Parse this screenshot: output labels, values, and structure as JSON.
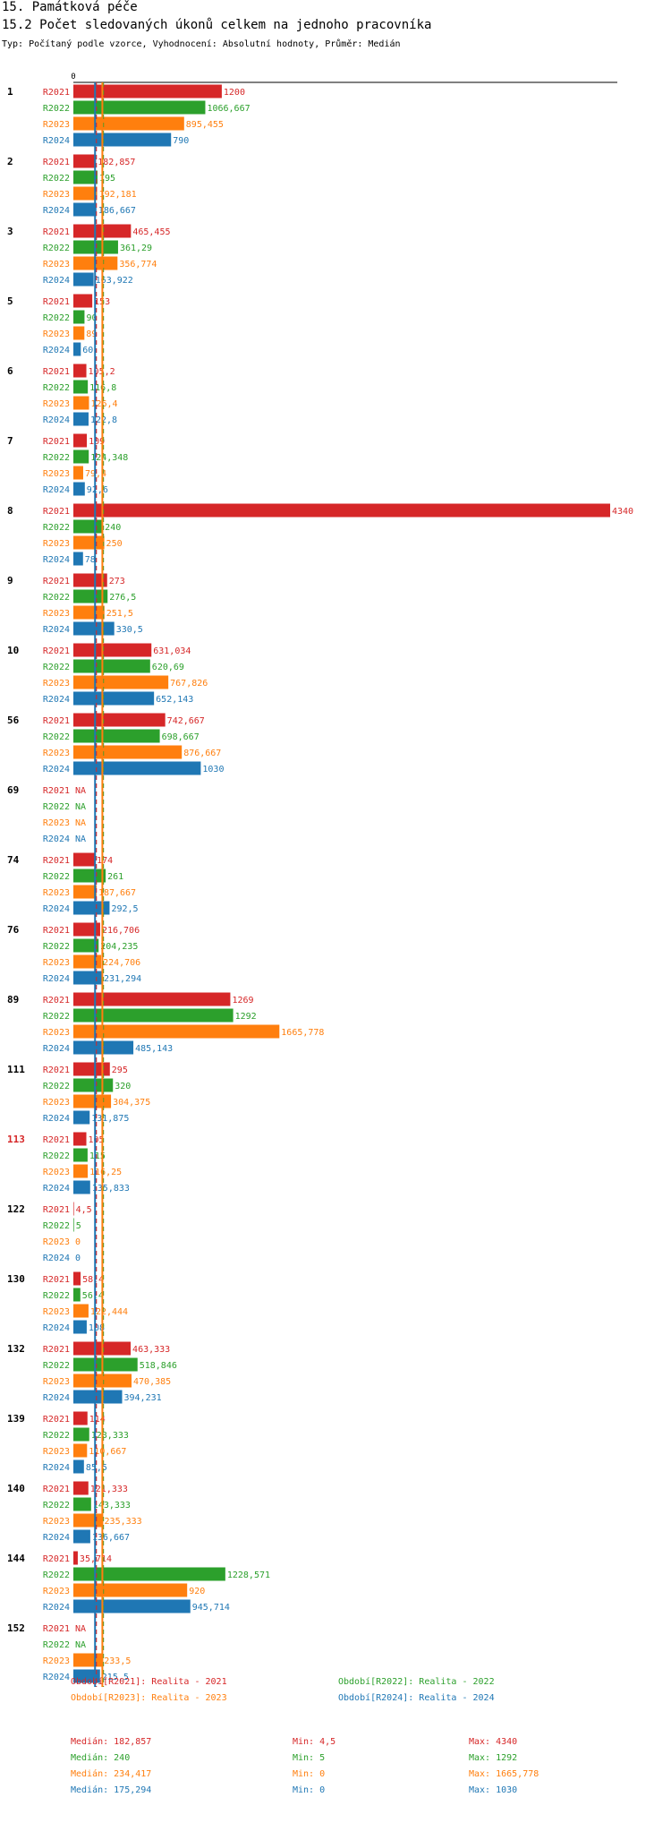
{
  "header": {
    "title": "15. Památková péče",
    "subtitle": "15.2 Počet sledovaných úkonů celkem na jednoho pracovníka",
    "description": "Typ: Počítaný podle vzorce, Vyhodnocení: Absolutní hodnoty, Průměr: Medián"
  },
  "colors": {
    "R2021": "#d62728",
    "R2022": "#2ca02c",
    "R2023": "#ff7f0e",
    "R2024": "#1f77b4",
    "highlight_group": "#d62728"
  },
  "chart_data": {
    "type": "bar",
    "orientation": "horizontal",
    "x_axis_tick": "0",
    "na_label": "NA",
    "series_names": [
      "R2021",
      "R2022",
      "R2023",
      "R2024"
    ],
    "groups": [
      {
        "id": "1",
        "values": [
          1200,
          1066.667,
          895.455,
          790
        ],
        "labels": [
          "1200",
          "1066,667",
          "895,455",
          "790"
        ]
      },
      {
        "id": "2",
        "values": [
          182.857,
          195,
          192.181,
          186.667
        ],
        "labels": [
          "182,857",
          "195",
          "192,181",
          "186,667"
        ]
      },
      {
        "id": "3",
        "values": [
          465.455,
          361.29,
          356.774,
          163.922
        ],
        "labels": [
          "465,455",
          "361,29",
          "356,774",
          "163,922"
        ]
      },
      {
        "id": "5",
        "values": [
          153,
          90,
          89,
          60
        ],
        "labels": [
          "153",
          "90",
          "89",
          "60"
        ]
      },
      {
        "id": "6",
        "values": [
          105.2,
          116.8,
          126.4,
          122.8
        ],
        "labels": [
          "105,2",
          "116,8",
          "126,4",
          "122,8"
        ]
      },
      {
        "id": "7",
        "values": [
          109,
          124.348,
          79.4,
          92.6
        ],
        "labels": [
          "109",
          "124,348",
          "79,4",
          "92,6"
        ]
      },
      {
        "id": "8",
        "values": [
          4340,
          240,
          250,
          78
        ],
        "labels": [
          "4340",
          "240",
          "250",
          "78"
        ]
      },
      {
        "id": "9",
        "values": [
          273,
          276.5,
          251.5,
          330.5
        ],
        "labels": [
          "273",
          "276,5",
          "251,5",
          "330,5"
        ]
      },
      {
        "id": "10",
        "values": [
          631.034,
          620.69,
          767.826,
          652.143
        ],
        "labels": [
          "631,034",
          "620,69",
          "767,826",
          "652,143"
        ]
      },
      {
        "id": "56",
        "values": [
          742.667,
          698.667,
          876.667,
          1030
        ],
        "labels": [
          "742,667",
          "698,667",
          "876,667",
          "1030"
        ]
      },
      {
        "id": "69",
        "values": [
          null,
          null,
          null,
          null
        ],
        "labels": [
          "NA",
          "NA",
          "NA",
          "NA"
        ]
      },
      {
        "id": "74",
        "values": [
          174,
          261,
          187.667,
          292.5
        ],
        "labels": [
          "174",
          "261",
          "187,667",
          "292,5"
        ]
      },
      {
        "id": "76",
        "values": [
          216.706,
          204.235,
          224.706,
          231.294
        ],
        "labels": [
          "216,706",
          "204,235",
          "224,706",
          "231,294"
        ]
      },
      {
        "id": "89",
        "values": [
          1269,
          1292,
          1665.778,
          485.143
        ],
        "labels": [
          "1269",
          "1292",
          "1665,778",
          "485,143"
        ]
      },
      {
        "id": "111",
        "values": [
          295,
          320,
          304.375,
          131.875
        ],
        "labels": [
          "295",
          "320",
          "304,375",
          "131,875"
        ]
      },
      {
        "id": "113",
        "highlight": true,
        "values": [
          105,
          115,
          116.25,
          135.833
        ],
        "labels": [
          "105",
          "115",
          "116,25",
          "135,833"
        ]
      },
      {
        "id": "122",
        "values": [
          4.5,
          5,
          0,
          0
        ],
        "labels": [
          "4,5",
          "5",
          "0",
          "0"
        ]
      },
      {
        "id": "130",
        "values": [
          58.4,
          56.4,
          122.444,
          108
        ],
        "labels": [
          "58,4",
          "56,4",
          "122,444",
          "108"
        ]
      },
      {
        "id": "132",
        "values": [
          463.333,
          518.846,
          470.385,
          394.231
        ],
        "labels": [
          "463,333",
          "518,846",
          "470,385",
          "394,231"
        ]
      },
      {
        "id": "139",
        "values": [
          114,
          128.333,
          110.667,
          85.5
        ],
        "labels": [
          "114",
          "128,333",
          "110,667",
          "85,5"
        ]
      },
      {
        "id": "140",
        "values": [
          121.333,
          143.333,
          235.333,
          136.667
        ],
        "labels": [
          "121,333",
          "143,333",
          "235,333",
          "136,667"
        ]
      },
      {
        "id": "144",
        "values": [
          35.714,
          1228.571,
          920,
          945.714
        ],
        "labels": [
          "35,714",
          "1228,571",
          "920",
          "945,714"
        ]
      },
      {
        "id": "152",
        "values": [
          null,
          null,
          233.5,
          215.5
        ],
        "labels": [
          "NA",
          "NA",
          "233,5",
          "215,5"
        ]
      }
    ],
    "reference_lines": [
      {
        "series": "R2021",
        "value": 182.857,
        "style": "dashed"
      },
      {
        "series": "R2022",
        "value": 240,
        "style": "dashed"
      },
      {
        "series": "R2023",
        "value": 234.417,
        "style": "solid"
      },
      {
        "series": "R2024",
        "value": 175.294,
        "style": "solid"
      }
    ],
    "legend": [
      {
        "series": "R2021",
        "text": "Období[R2021]: Realita - 2021"
      },
      {
        "series": "R2022",
        "text": "Období[R2022]: Realita - 2022"
      },
      {
        "series": "R2023",
        "text": "Období[R2023]: Realita - 2023"
      },
      {
        "series": "R2024",
        "text": "Období[R2024]: Realita - 2024"
      }
    ],
    "stats": [
      {
        "series": "R2021",
        "median": "Medián: 182,857",
        "min": "Min: 4,5",
        "max": "Max: 4340"
      },
      {
        "series": "R2022",
        "median": "Medián: 240",
        "min": "Min: 5",
        "max": "Max: 1292"
      },
      {
        "series": "R2023",
        "median": "Medián: 234,417",
        "min": "Min: 0",
        "max": "Max: 1665,778"
      },
      {
        "series": "R2024",
        "median": "Medián: 175,294",
        "min": "Min: 0",
        "max": "Max: 1030"
      }
    ]
  }
}
